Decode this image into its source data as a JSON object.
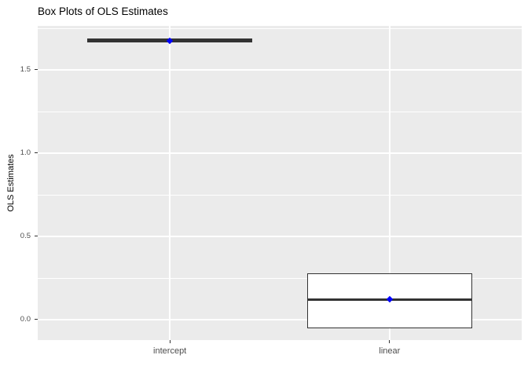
{
  "title": "Box Plots of OLS Estimates",
  "chart_data": {
    "type": "boxplot",
    "title": "Box Plots of OLS Estimates",
    "xlabel": "",
    "ylabel": "OLS Estimates",
    "ylim": [
      -0.123,
      1.764
    ],
    "y_major_ticks": [
      {
        "value": 0.0,
        "label": "0.0"
      },
      {
        "value": 0.5,
        "label": "0.5"
      },
      {
        "value": 1.0,
        "label": "1.0"
      },
      {
        "value": 1.5,
        "label": "1.5"
      }
    ],
    "y_minor_ticks": [
      0.25,
      0.75,
      1.25,
      1.75
    ],
    "categories": [
      "intercept",
      "linear"
    ],
    "series": [
      {
        "category": "intercept",
        "x_frac": 0.273,
        "whisker_low": 1.665,
        "q1": 1.665,
        "median": 1.676,
        "q3": 1.69,
        "whisker_high": 1.69,
        "mean_point": 1.676
      },
      {
        "category": "linear",
        "x_frac": 0.727,
        "whisker_low": -0.05,
        "q1": -0.05,
        "median": 0.12,
        "q3": 0.278,
        "whisker_high": 0.278,
        "mean_point": 0.12
      }
    ],
    "box_width_frac": 0.341,
    "grid": "major+minor",
    "legend": "none",
    "colors": {
      "panel_bg": "#EBEBEB",
      "grid_line": "#FFFFFF",
      "box_fill": "#FFFFFF",
      "box_border": "#333333",
      "median_line": "#333333",
      "mean_point": "#0000FF",
      "tick_mark": "#333333",
      "tick_label": "#4D4D4D",
      "title": "#000000",
      "axis_title": "#000000"
    }
  }
}
